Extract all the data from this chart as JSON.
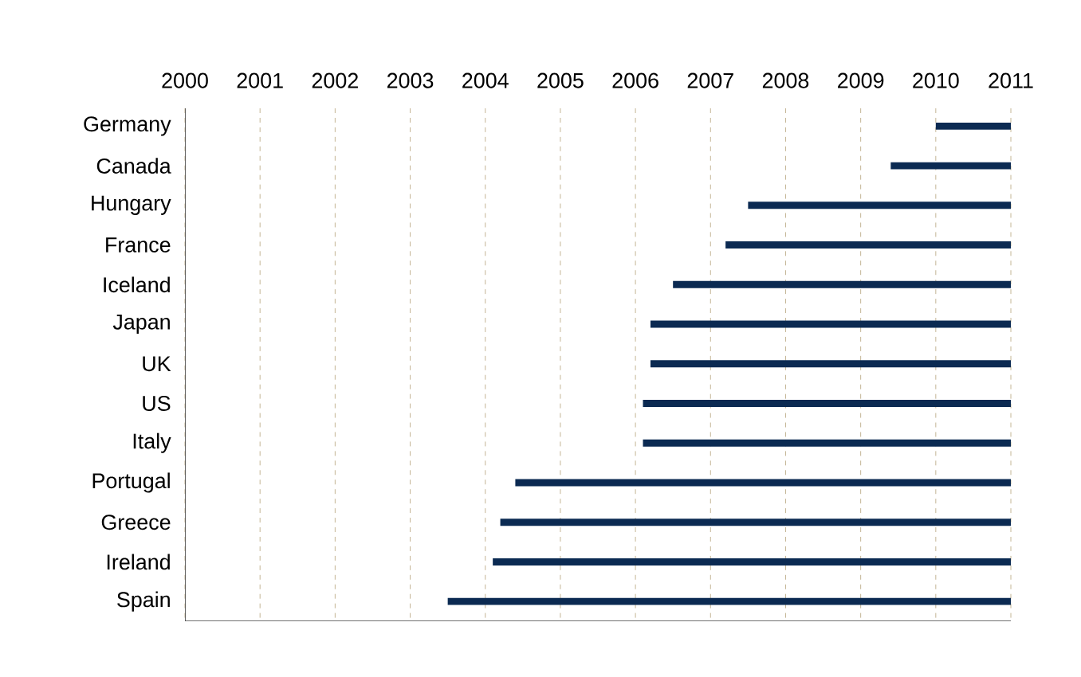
{
  "chart_data": {
    "type": "bar",
    "orientation": "horizontal",
    "color": "#0b2a52",
    "categories": [
      "Germany",
      "Canada",
      "Hungary",
      "France",
      "Iceland",
      "Japan",
      "UK",
      "US",
      "Italy",
      "Portugal",
      "Greece",
      "Ireland",
      "Spain"
    ],
    "base": [
      2010.0,
      2009.4,
      2007.5,
      2007.2,
      2006.5,
      2006.2,
      2006.2,
      2006.1,
      2006.1,
      2004.4,
      2004.2,
      2004.1,
      2003.5
    ],
    "values": [
      1.0,
      1.6,
      3.5,
      3.8,
      4.5,
      4.8,
      4.8,
      4.9,
      4.9,
      6.6,
      6.8,
      6.9,
      7.5
    ],
    "xlim": [
      2000,
      2011
    ],
    "xticks": [
      2000,
      2001,
      2002,
      2003,
      2004,
      2005,
      2006,
      2007,
      2008,
      2009,
      2010,
      2011
    ],
    "grid": "x"
  }
}
